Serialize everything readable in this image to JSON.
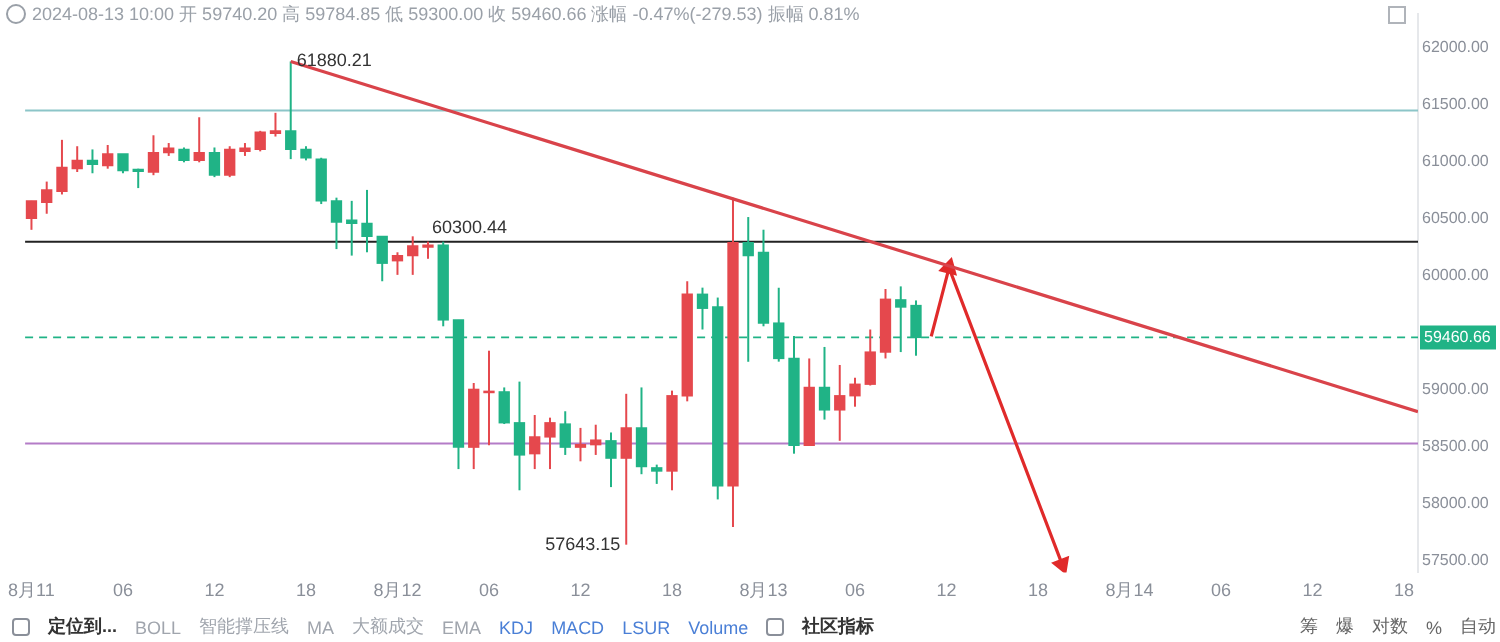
{
  "chart_data": {
    "type": "candlestick",
    "title": "2024-08-13 10:00 开 59740.20 高 59784.85 低 59300.00 收 59460.66 涨幅 -0.47%(-279.53) 振幅 0.81%",
    "x": [
      "2024-08-11T00:00",
      "2024-08-11T01:00",
      "2024-08-11T02:00",
      "2024-08-11T03:00",
      "2024-08-11T04:00",
      "2024-08-11T05:00",
      "2024-08-11T06:00",
      "2024-08-11T07:00",
      "2024-08-11T08:00",
      "2024-08-11T09:00",
      "2024-08-11T10:00",
      "2024-08-11T11:00",
      "2024-08-11T12:00",
      "2024-08-11T13:00",
      "2024-08-11T14:00",
      "2024-08-11T15:00",
      "2024-08-11T16:00",
      "2024-08-11T17:00",
      "2024-08-11T18:00",
      "2024-08-11T19:00",
      "2024-08-11T20:00",
      "2024-08-11T21:00",
      "2024-08-11T22:00",
      "2024-08-11T23:00",
      "2024-08-12T00:00",
      "2024-08-12T01:00",
      "2024-08-12T02:00",
      "2024-08-12T03:00",
      "2024-08-12T04:00",
      "2024-08-12T05:00",
      "2024-08-12T06:00",
      "2024-08-12T07:00",
      "2024-08-12T08:00",
      "2024-08-12T09:00",
      "2024-08-12T10:00",
      "2024-08-12T11:00",
      "2024-08-12T12:00",
      "2024-08-12T13:00",
      "2024-08-12T14:00",
      "2024-08-12T15:00",
      "2024-08-12T16:00",
      "2024-08-12T17:00",
      "2024-08-12T18:00",
      "2024-08-12T19:00",
      "2024-08-12T20:00",
      "2024-08-12T21:00",
      "2024-08-12T22:00",
      "2024-08-12T23:00",
      "2024-08-13T00:00",
      "2024-08-13T01:00",
      "2024-08-13T02:00",
      "2024-08-13T03:00",
      "2024-08-13T04:00",
      "2024-08-13T05:00",
      "2024-08-13T06:00",
      "2024-08-13T07:00",
      "2024-08-13T08:00",
      "2024-08-13T09:00",
      "2024-08-13T10:00"
    ],
    "ohlc": [
      [
        60505,
        60658,
        60404,
        60658
      ],
      [
        60646,
        60827,
        60545,
        60754
      ],
      [
        60742,
        61193,
        60714,
        60951
      ],
      [
        60940,
        61137,
        60911,
        61013
      ],
      [
        61013,
        61109,
        60900,
        60979
      ],
      [
        60968,
        61148,
        60940,
        61069
      ],
      [
        61069,
        61069,
        60900,
        60923
      ],
      [
        60934,
        60940,
        60770,
        60917
      ],
      [
        60911,
        61233,
        60883,
        61081
      ],
      [
        61081,
        61165,
        61052,
        61120
      ],
      [
        61109,
        61126,
        60996,
        61013
      ],
      [
        61013,
        61391,
        60996,
        61081
      ],
      [
        61081,
        61126,
        60866,
        60883
      ],
      [
        60883,
        61137,
        60866,
        61109
      ],
      [
        61092,
        61165,
        61052,
        61120
      ],
      [
        61109,
        61272,
        61092,
        61261
      ],
      [
        61250,
        61430,
        61222,
        61272
      ],
      [
        61272,
        61880.21,
        61024,
        61109
      ],
      [
        61109,
        61137,
        61013,
        61036
      ],
      [
        61024,
        61036,
        60630,
        60658
      ],
      [
        60658,
        60686,
        60235,
        60472
      ],
      [
        60488,
        60658,
        60178,
        60460
      ],
      [
        60460,
        60754,
        60207,
        60347
      ],
      [
        60347,
        60347,
        59953,
        60111
      ],
      [
        60133,
        60207,
        60009,
        60178
      ],
      [
        60178,
        60347,
        60009,
        60263
      ],
      [
        60252,
        60300.44,
        60150,
        60269
      ],
      [
        60269,
        60300,
        59558,
        59614
      ],
      [
        59614,
        59614,
        58306,
        58498
      ],
      [
        58498,
        59061,
        58306,
        59005
      ],
      [
        58977,
        59344,
        58515,
        58988
      ],
      [
        58983,
        59022,
        58701,
        58712
      ],
      [
        58712,
        59073,
        58120,
        58430
      ],
      [
        58441,
        58780,
        58306,
        58588
      ],
      [
        58588,
        58757,
        58306,
        58712
      ],
      [
        58701,
        58813,
        58430,
        58498
      ],
      [
        58498,
        58667,
        58374,
        58520
      ],
      [
        58520,
        58695,
        58430,
        58560
      ],
      [
        58554,
        58627,
        58148,
        58402
      ],
      [
        58402,
        58966,
        57643.15,
        58667
      ],
      [
        58667,
        59022,
        58261,
        58328
      ],
      [
        58317,
        58345,
        58176,
        58289
      ],
      [
        58289,
        58994,
        58120,
        58949
      ],
      [
        58949,
        59953,
        58900,
        59839
      ],
      [
        59839,
        59897,
        59530,
        59716
      ],
      [
        59728,
        59810,
        58040,
        58159
      ],
      [
        58159,
        60685,
        57798,
        60291
      ],
      [
        60291,
        60516,
        59247,
        60178
      ],
      [
        60206,
        60405,
        59558,
        59586
      ],
      [
        59586,
        59896,
        59248,
        59276
      ],
      [
        59276,
        59473,
        58441,
        58514
      ],
      [
        58514,
        59276,
        58514,
        59022
      ],
      [
        59022,
        59377,
        58740,
        58825
      ],
      [
        58825,
        59219,
        58554,
        58949
      ],
      [
        58949,
        59107,
        58853,
        59050
      ],
      [
        59050,
        59530,
        59039,
        59332
      ],
      [
        59332,
        59885,
        59276,
        59795
      ],
      [
        59790,
        59908,
        59332,
        59727
      ],
      [
        59740.2,
        59784.85,
        59300.0,
        59460.66
      ]
    ],
    "colors": [
      "#e5484d",
      "#e5484d",
      "#e5484d",
      "#e5484d",
      "#20b386",
      "#e5484d",
      "#20b386",
      "#20b386",
      "#e5484d",
      "#e5484d",
      "#20b386",
      "#e5484d",
      "#20b386",
      "#e5484d",
      "#e5484d",
      "#e5484d",
      "#e5484d",
      "#20b386",
      "#20b386",
      "#20b386",
      "#20b386",
      "#20b386",
      "#20b386",
      "#20b386",
      "#e5484d",
      "#e5484d",
      "#e5484d",
      "#20b386",
      "#20b386",
      "#e5484d",
      "#e5484d",
      "#20b386",
      "#20b386",
      "#e5484d",
      "#e5484d",
      "#20b386",
      "#e5484d",
      "#e5484d",
      "#20b386",
      "#e5484d",
      "#20b386",
      "#20b386",
      "#e5484d",
      "#e5484d",
      "#20b386",
      "#20b386",
      "#e5484d",
      "#20b386",
      "#20b386",
      "#20b386",
      "#20b386",
      "#e5484d",
      "#20b386",
      "#e5484d",
      "#e5484d",
      "#e5484d",
      "#e5484d",
      "#20b386",
      "#20b386"
    ],
    "series": [
      {
        "type": "line",
        "color": "#d9434a",
        "x": [
          "2024-08-11T17:00",
          "2024-08-14T18:55"
        ],
        "values": [
          61880,
          58810
        ],
        "marker": "none"
      },
      {
        "type": "line",
        "color": "#e02a2a",
        "x": [
          "2024-08-13T11:00",
          "2024-08-13T12:10",
          "2024-08-13T19:35"
        ],
        "values": [
          59470,
          60070,
          57470
        ],
        "marker": "triangle"
      }
    ],
    "ref_lines": [
      {
        "axis": "y",
        "value": 61450,
        "color": "#8cc5c8"
      },
      {
        "axis": "y",
        "value": 60300.44,
        "color": "#222222"
      },
      {
        "axis": "y",
        "value": 58530,
        "color": "#b47cc7"
      },
      {
        "axis": "y",
        "value": 59460.66,
        "label": "59460.66",
        "color": "#20b386",
        "line_style": "dashed"
      }
    ],
    "annotations": [
      {
        "text": "61880.21",
        "x": "2024-08-11T17:00",
        "y": 61880.21
      },
      {
        "text": "60300.44",
        "x": "2024-08-12T02:00",
        "y": 60300.44
      },
      {
        "text": "57643.15",
        "x": "2024-08-12T15:00",
        "y": 57643.15
      },
      "定位到...",
      "BOLL",
      "智能撑压线",
      "MA",
      "大额成交",
      "EMA",
      "KDJ",
      "MACD",
      "LSUR",
      "Volume",
      "社区指标",
      "筹",
      "爆",
      "对数",
      "%",
      "自动"
    ],
    "xlim": [
      "2024-08-10T23:35",
      "2024-08-14T18:55"
    ],
    "xticks": [
      {
        "value": "2024-08-11T00:00",
        "label": "8月11"
      },
      {
        "value": "2024-08-11T06:00",
        "label": "06"
      },
      {
        "value": "2024-08-11T12:00",
        "label": "12"
      },
      {
        "value": "2024-08-11T18:00",
        "label": "18"
      },
      {
        "value": "2024-08-12T00:00",
        "label": "8月12"
      },
      {
        "value": "2024-08-12T06:00",
        "label": "06"
      },
      {
        "value": "2024-08-12T12:00",
        "label": "12"
      },
      {
        "value": "2024-08-12T18:00",
        "label": "18"
      },
      {
        "value": "2024-08-13T00:00",
        "label": "8月13"
      },
      {
        "value": "2024-08-13T06:00",
        "label": "06"
      },
      {
        "value": "2024-08-13T12:00",
        "label": "12"
      },
      {
        "value": "2024-08-13T18:00",
        "label": "18"
      },
      {
        "value": "2024-08-14T00:00",
        "label": "8月14"
      },
      {
        "value": "2024-08-14T06:00",
        "label": "06"
      },
      {
        "value": "2024-08-14T12:00",
        "label": "12"
      },
      {
        "value": "2024-08-14T18:00",
        "label": "18"
      }
    ],
    "ylim": [
      57400,
      62300
    ],
    "yticks": [
      {
        "value": 57500,
        "label": "57500.00"
      },
      {
        "value": 58000,
        "label": "58000.00"
      },
      {
        "value": 58500,
        "label": "58500.00"
      },
      {
        "value": 59000,
        "label": "59000.00"
      },
      {
        "value": 60000,
        "label": "60000.00"
      },
      {
        "value": 60500,
        "label": "60500.00"
      },
      {
        "value": 61000,
        "label": "61000.00"
      },
      {
        "value": 61500,
        "label": "61500.00"
      },
      {
        "value": 62000,
        "label": "62000.00"
      }
    ]
  }
}
